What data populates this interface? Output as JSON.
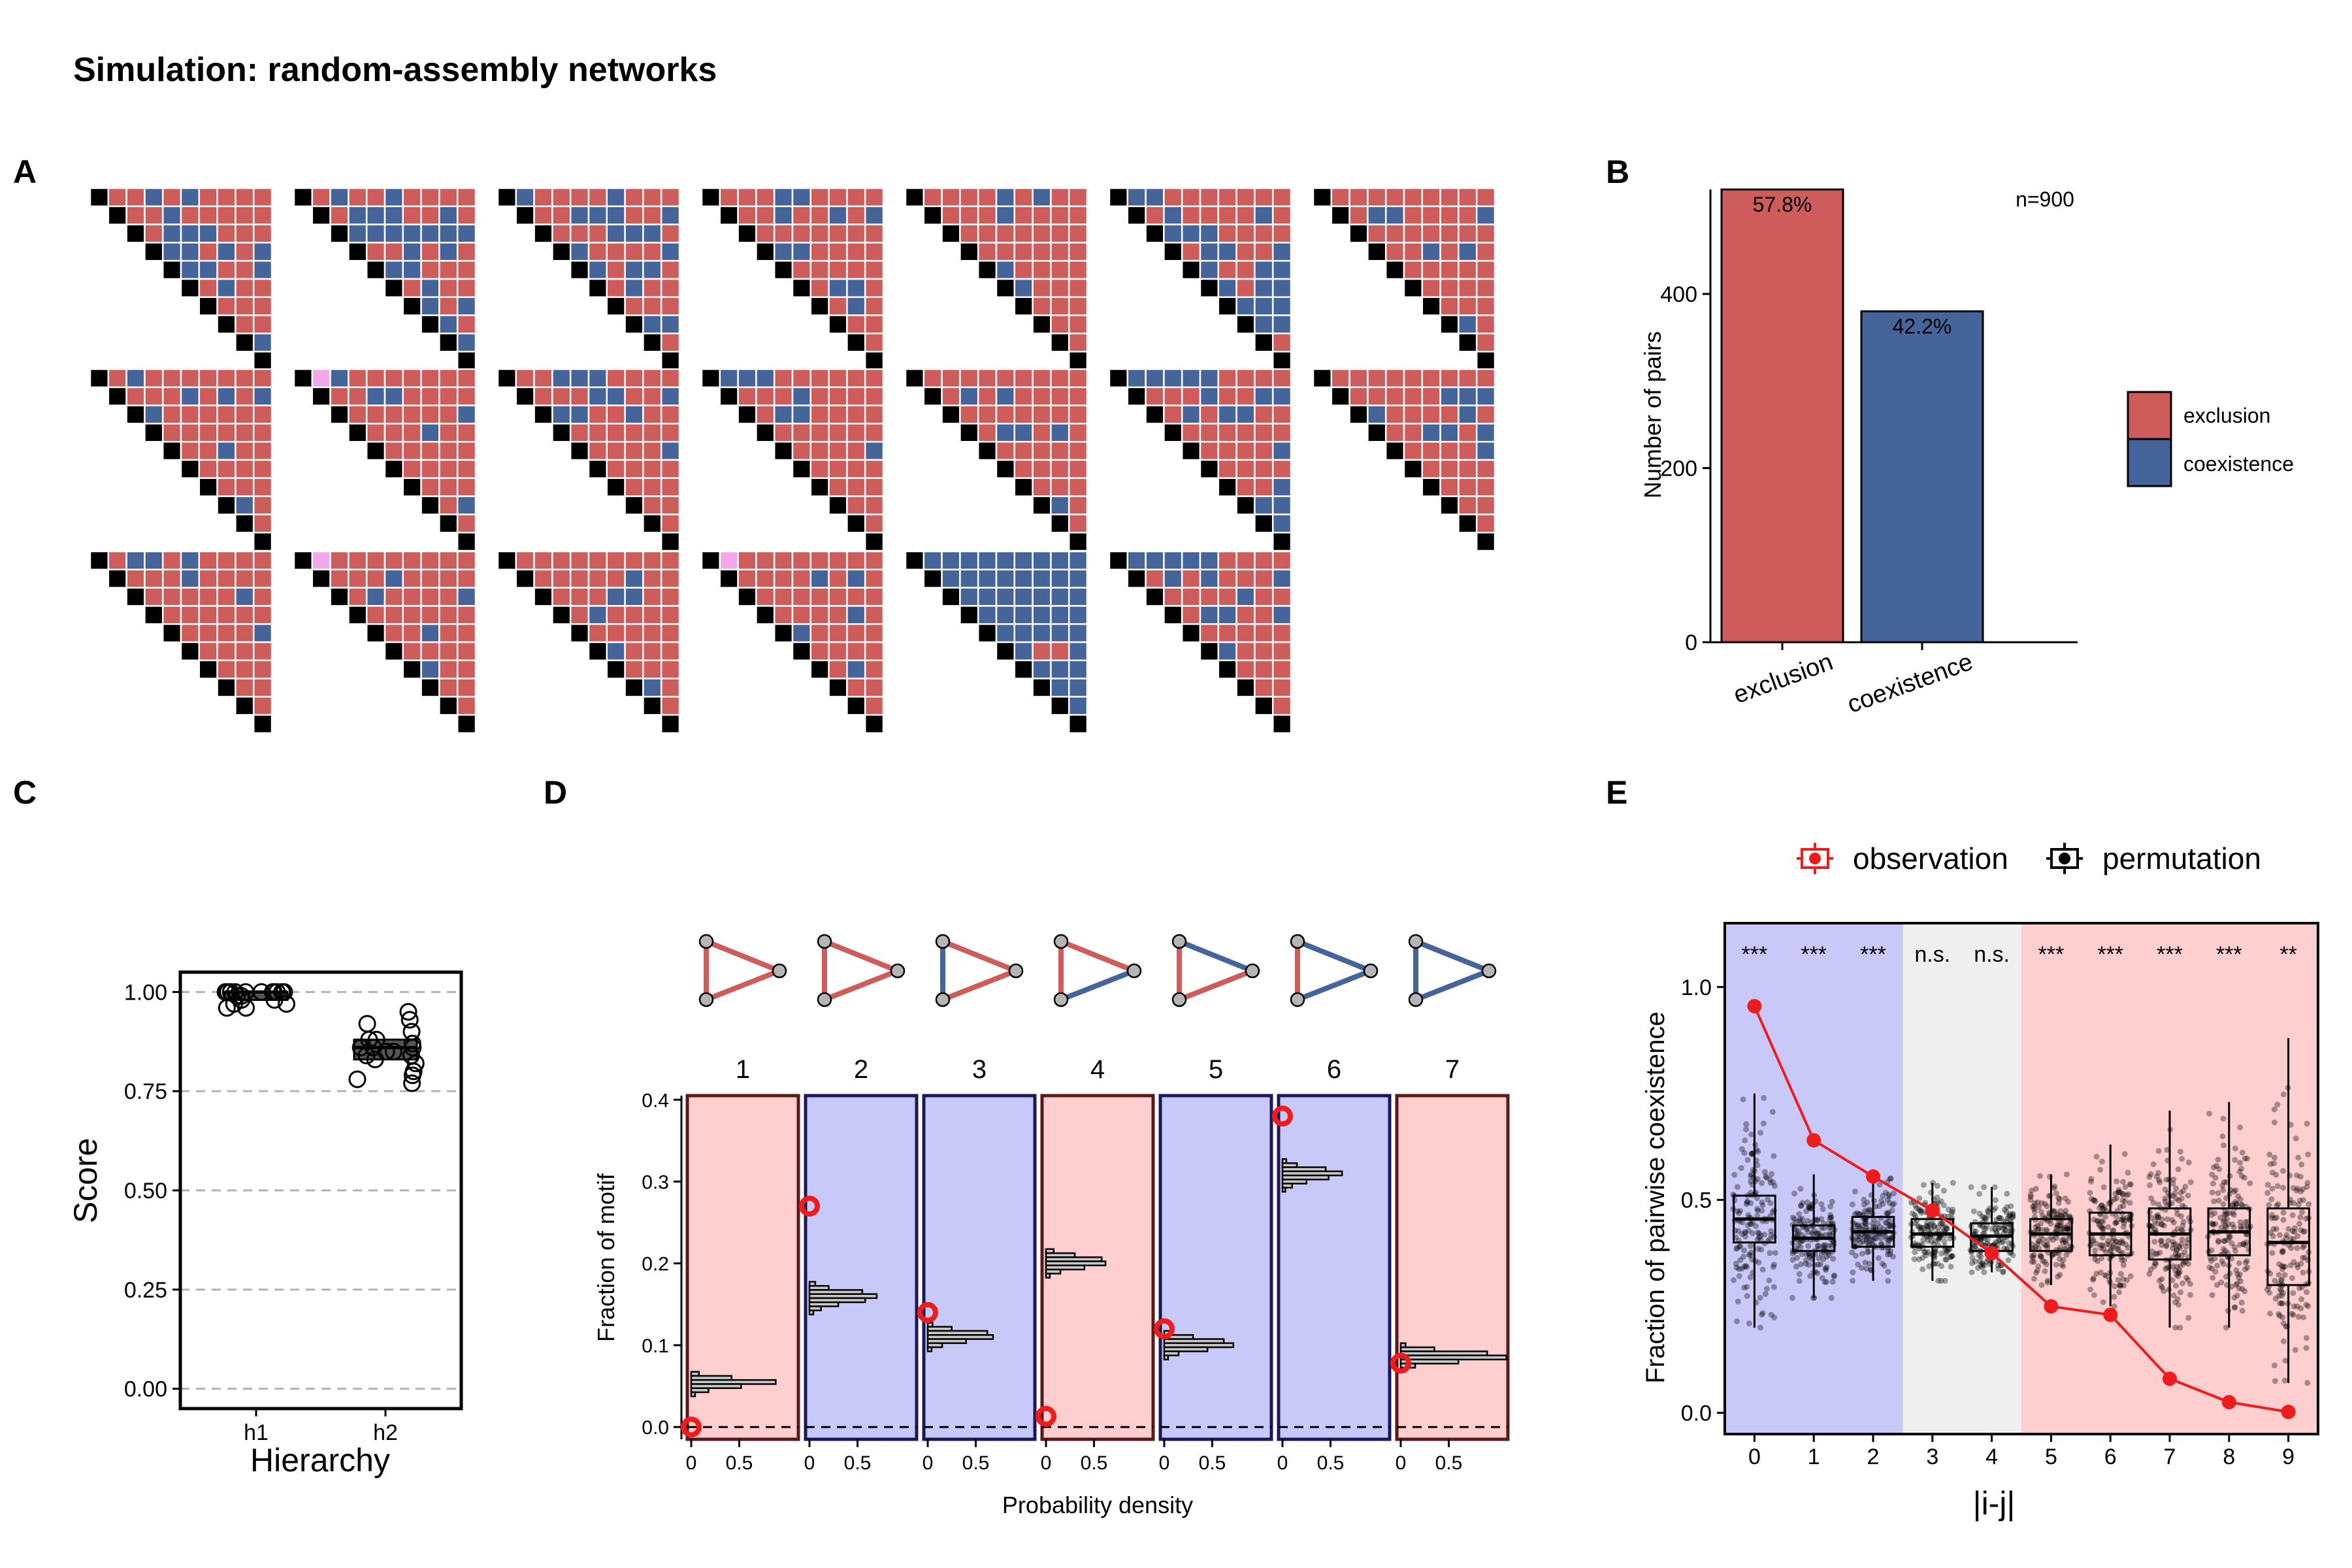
{
  "figure_title": "Simulation: random-assembly networks",
  "panel_labels": [
    "A",
    "B",
    "C",
    "D",
    "E"
  ],
  "colors": {
    "exclusion": "#cd5c5a",
    "coexistence": "#45659a",
    "diagonal": "#000000",
    "pink": "#f4a8ec",
    "bg_red": "#ffcfd0",
    "bg_blue": "#c9c9f9",
    "bg_grey": "#efefef",
    "observation": "#ee1c1c",
    "permutation": "#000000"
  },
  "chart_data": [
    {
      "panel": "A",
      "type": "heatmap",
      "description_matrices": 20,
      "grid_size": 10,
      "matrix_cells": [
        "RRBRBRRRRRRBRRRRRRBBBRRRBBRBRBBBRRBRBRRRRRRRBRRRRRRRRRRRBRRBRRRRRBBR",
        "RBRRBRRRRRBBBRRBRBBBBBBBRRBRBRBBRRRRBRRBRBBRBBRBRRBRRBBRRRBRRRBBRRRR",
        "BRRRRBRRRRRBBBRRBRRRBBBRBRRRRBBRBBRRBRRRRRBBRRBRBRBRRRRBRBRRRBRRBBBR",
        "RRRBBRRRRRRBRRBRBRRRRRRRBBRRRRRRRRRRBBRRBRRRRRRBBRRBRRRRRRBBRRBRRRRR",
        "RRRRBRBRRRRRBRRRRRRRRRRRRRRRRRBRRRRBRRRRRRRRRRRRBRBRRRRRBBRRRRRRRRRR",
        "BBRRRRRRRRBRRRRBRBBBRRRRRBBRRBBRRBBBRBBBBBBBRBRBRRRRBRRRBRRRRRBBRRBB",
        "RRRRRRRRRRBBRRRRBRRRRRRRRRBRBRRRRRRRRRRRRRBRRBRRBRBRBRBRRRRRBRRRRRRR",
        "RBRRRRRRRRRRBRBRBBRRRRRRRRRRRRRRBRRRRRRRRRBRRRRBRRRRRRRBRRRRRRBRRBRR",
        "RBRRRRRRRRRBBRRRRRRRRRRBRRRBRRRRRRRRRRRRRRRBRRRRBRRBRRRBRRRRRBRBRBRR",
        "RRBBBRRRRRRRBBRRBBBRRBRRRRRRRRRRRRBRRRRRRRRRRRRRBRRRRRRRRRRRRRRRBRRB",
        "BBBRRRRRRRRRBRRRRRBBRRRRRRRRRRRRRRBRRRRRRRRRRRRBRRRRRRBRBRRRRBBRRRRB",
        "RRRRRRRRRRBRBRRRRRRRRRRRRBBRBRRRRRRRRRRRRRBRRRRRBRBRRRRRRBBRRRRRBRRR",
        "BBBBBRRRRRRRBRRBBRBRBBRRRRRRRRRRRRBRRRRRRBBBBBBRRRRRRRRBRRRRRRBRRRBR",
        "RRRRRRRRRRRRRRBBBBRRRRBRRRBBRBRRRRBRRRRRRRRRRBRRRRBRBRRRRRRRRRRRBRRR",
        "RBBRBRRRRRRRBRRRRRRRRRBRRRRRRRRRRRBRRRRRRRRRRBRRRRRBRRBRRRRRRRRBRRRR",
        "RRRRRRRRRRRRBRRRRRBRRRRBRRRRRRRRBRRRRRRBRRRRRRRRRRRRBRRRBRRRRRRRRRRR",
        "RRRRRRRRRRRRRRBRRRRRBBRRRBRRRRRRRRRBRRRRRRBRRRRRRRBRRRRRRRRRRRRRRRRR",
        "RRRRRRRRRRRRRBRBRRRRRRRRRRRRBRBRRRRRRRRRBRRRRRRRRRRRRRRRRRRRRRRRRRRR",
        "BBBBBBBBBBBBBBBBBBBBBBBBBBBBBBBBBBBBRRBBBBBBBBBBRRBBBBRBBBBBRBBBBBBB",
        "BBBBBRRRRRBRBRRRBRRRRBRRRBBRRBRRRRRBRRRRRRRRRRRRRRRRRRRRRRRRRRRRRRRR"
      ]
    },
    {
      "panel": "B",
      "type": "bar",
      "categories": [
        "exclusion",
        "coexistence"
      ],
      "values": [
        520,
        380
      ],
      "data_labels": [
        "57.8%",
        "42.2%"
      ],
      "annotation": "n=900",
      "ylabel": "Number of pairs",
      "ylim": [
        0,
        520
      ],
      "yticks": [
        0,
        200,
        400
      ],
      "legend": [
        "exclusion",
        "coexistence"
      ]
    },
    {
      "panel": "C",
      "type": "scatter",
      "x_categories": [
        "h1",
        "h2"
      ],
      "xlabel": "Hierarchy",
      "ylabel": "Score",
      "ylim": [
        -0.05,
        1.05
      ],
      "yticks": [
        "0.00",
        "0.25",
        "0.50",
        "0.75",
        "1.00"
      ],
      "h1_scores": [
        1.0,
        1.0,
        1.0,
        1.0,
        1.0,
        1.0,
        1.0,
        1.0,
        1.0,
        1.0,
        1.0,
        0.99,
        0.98,
        0.98,
        0.97,
        0.97,
        0.96,
        0.96,
        0.99,
        1.0
      ],
      "h2_scores": [
        0.95,
        0.92,
        0.9,
        0.88,
        0.87,
        0.86,
        0.86,
        0.85,
        0.85,
        0.84,
        0.84,
        0.83,
        0.82,
        0.8,
        0.79,
        0.78,
        0.77,
        0.93,
        0.88,
        0.86
      ]
    },
    {
      "panel": "D",
      "type": "bar",
      "motif_labels": [
        "1",
        "2",
        "3",
        "4",
        "5",
        "6",
        "7"
      ],
      "motif_background": [
        "red",
        "blue",
        "blue",
        "red",
        "blue",
        "blue",
        "red"
      ],
      "observed": [
        0.0,
        0.27,
        0.14,
        0.013,
        0.12,
        0.38,
        0.078
      ],
      "hist_bin_fractions": [
        [
          0.065,
          0.06,
          0.055,
          0.05,
          0.045,
          0.04
        ],
        [
          0.175,
          0.17,
          0.165,
          0.16,
          0.155,
          0.15,
          0.145,
          0.14
        ],
        [
          0.125,
          0.12,
          0.115,
          0.11,
          0.105,
          0.1,
          0.095
        ],
        [
          0.215,
          0.21,
          0.205,
          0.2,
          0.195,
          0.19,
          0.185
        ],
        [
          0.115,
          0.11,
          0.105,
          0.1,
          0.095,
          0.09,
          0.085
        ],
        [
          0.325,
          0.32,
          0.315,
          0.31,
          0.305,
          0.3,
          0.295,
          0.29
        ],
        [
          0.1,
          0.095,
          0.09,
          0.085,
          0.08,
          0.075
        ]
      ],
      "hist_densities": [
        [
          0.08,
          0.42,
          0.88,
          0.52,
          0.18,
          0.04
        ],
        [
          0.06,
          0.2,
          0.55,
          0.7,
          0.58,
          0.3,
          0.12,
          0.04
        ],
        [
          0.05,
          0.25,
          0.62,
          0.68,
          0.4,
          0.15,
          0.04
        ],
        [
          0.08,
          0.3,
          0.58,
          0.62,
          0.4,
          0.15,
          0.04
        ],
        [
          0.06,
          0.3,
          0.62,
          0.72,
          0.45,
          0.15,
          0.04
        ],
        [
          0.04,
          0.15,
          0.45,
          0.62,
          0.48,
          0.25,
          0.1,
          0.03
        ],
        [
          0.05,
          0.35,
          0.9,
          1.1,
          0.6,
          0.15
        ]
      ],
      "xlabel": "Probability density",
      "ylabel": "Fraction of motif",
      "ylim": [
        -0.015,
        0.405
      ],
      "yticks": [
        "0.0",
        "0.1",
        "0.2",
        "0.3",
        "0.4"
      ],
      "xticks": [
        "0",
        "0.5"
      ],
      "x_max": 1.0
    },
    {
      "panel": "E",
      "type": "line",
      "x": [
        0,
        1,
        2,
        3,
        4,
        5,
        6,
        7,
        8,
        9
      ],
      "observation": [
        0.955,
        0.64,
        0.555,
        0.475,
        0.375,
        0.25,
        0.23,
        0.08,
        0.025,
        0.002
      ],
      "permutation_median": [
        0.455,
        0.41,
        0.425,
        0.42,
        0.415,
        0.42,
        0.42,
        0.42,
        0.425,
        0.4
      ],
      "permutation_q1": [
        0.4,
        0.38,
        0.39,
        0.39,
        0.38,
        0.38,
        0.37,
        0.36,
        0.37,
        0.3
      ],
      "permutation_q3": [
        0.51,
        0.44,
        0.46,
        0.455,
        0.445,
        0.455,
        0.47,
        0.48,
        0.48,
        0.48
      ],
      "permutation_min": [
        0.2,
        0.27,
        0.31,
        0.31,
        0.33,
        0.3,
        0.25,
        0.2,
        0.2,
        0.07
      ],
      "permutation_max": [
        0.75,
        0.56,
        0.55,
        0.54,
        0.53,
        0.56,
        0.63,
        0.71,
        0.73,
        0.88
      ],
      "point_spread": [
        0.12,
        0.06,
        0.05,
        0.05,
        0.045,
        0.055,
        0.075,
        0.085,
        0.085,
        0.15
      ],
      "significance": [
        "***",
        "***",
        "***",
        "n.s.",
        "n.s.",
        "***",
        "***",
        "***",
        "***",
        "**"
      ],
      "background": [
        "blue",
        "blue",
        "blue",
        "grey",
        "grey",
        "red",
        "red",
        "red",
        "red",
        "red"
      ],
      "xlabel": "|i-j|",
      "ylabel": "Fraction of pairwise coexistence",
      "ylim": [
        -0.05,
        1.15
      ],
      "yticks": [
        "0.0",
        "0.5",
        "1.0"
      ],
      "legend": [
        "observation",
        "permutation"
      ],
      "legend_position": "top"
    }
  ]
}
